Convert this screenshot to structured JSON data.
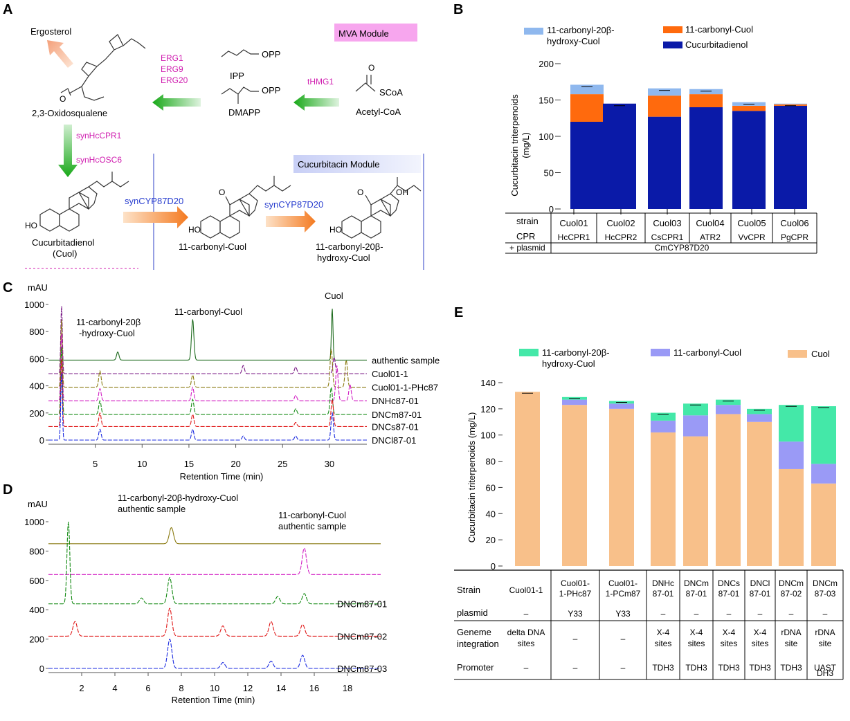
{
  "panels": {
    "a": "A",
    "b": "B",
    "c": "C",
    "d": "D",
    "e": "E"
  },
  "panelA": {
    "ergosterol": "Ergosterol",
    "mva_module": "MVA Module",
    "erg": [
      "ERG1",
      "ERG9",
      "ERG20"
    ],
    "opp1": "OPP",
    "ipp": "IPP",
    "opp2": "OPP",
    "dmapp": "DMAPP",
    "thmg1": "tHMG1",
    "o_label": "O",
    "scoa": "SCoA",
    "acetyl": "Acetyl-CoA",
    "oxido": "2,3-Oxidosqualene",
    "synhccpr1": "synHcCPR1",
    "synhcosc6": "synHcOSC6",
    "cuc_module": "Cucurbitacin Module",
    "cuol_name1": "Cucurbitadienol",
    "cuol_name2": "(Cuol)",
    "cyp1": "synCYP87D20",
    "cyp2": "synCYP87D20",
    "ho": "HO",
    "ho2": "HO",
    "ho3": "HO",
    "oh": "OH",
    "o1": "O",
    "o2": "O",
    "carbonyl": "11-carbonyl-Cuol",
    "hydroxy1": "11-carbonyl-20β-",
    "hydroxy2": "hydroxy-Cuol"
  },
  "panelB": {
    "legend": [
      {
        "name1": "11-carbonyl-20β-",
        "name2": "hydroxy-Cuol",
        "color": "#8fb8ee"
      },
      {
        "name1": "11-carbonyl-Cuol",
        "name2": "",
        "color": "#ff6a0d"
      },
      {
        "name1": "Cucurbitadienol",
        "name2": "",
        "color": "#0a1aa8"
      }
    ],
    "ylabel1": "Cucurbitacin triterpenoids",
    "ylabel2": "(mg/L)",
    "yticks": [
      "0",
      "50",
      "100",
      "150",
      "200"
    ],
    "row_labels": [
      "strain",
      "CPR",
      "+ plasmid"
    ],
    "strains": [
      "Cuol01",
      "Cuol02",
      "Cuol03",
      "Cuol04",
      "Cuol05",
      "Cuol06"
    ],
    "cpr": [
      "HcCPR1",
      "HcCPR2",
      "CsCPR1",
      "ATR2",
      "VvCPR",
      "PgCPR"
    ],
    "plasmid": "CmCYP87D20"
  },
  "panelC": {
    "yunit": "mAU",
    "yticks": [
      "0",
      "200",
      "400",
      "600",
      "800",
      "1000"
    ],
    "xticks": [
      "5",
      "10",
      "15",
      "20",
      "25",
      "30"
    ],
    "xlabel": "Retention Time (min)",
    "peak_labels": [
      "11-carbonyl-20β",
      "-hydroxy-Cuol",
      "11-carbonyl-Cuol",
      "Cuol"
    ],
    "traces": [
      {
        "name": "authentic sample",
        "color": "#1e6b1e"
      },
      {
        "name": "Cuol01-1",
        "color": "#7a1a86"
      },
      {
        "name": "Cuol01-1-PHc87",
        "color": "#8a7a10"
      },
      {
        "name": "DNHc87-01",
        "color": "#d21fc4"
      },
      {
        "name": "DNCm87-01",
        "color": "#138a13"
      },
      {
        "name": "DNCs87-01",
        "color": "#e01818"
      },
      {
        "name": "DNCl87-01",
        "color": "#1a2ae0"
      }
    ]
  },
  "panelD": {
    "yunit": "mAU",
    "yticks": [
      "0",
      "200",
      "400",
      "600",
      "800",
      "1000"
    ],
    "xticks": [
      "2",
      "4",
      "6",
      "8",
      "10",
      "12",
      "14",
      "16",
      "18"
    ],
    "xlabel": "Retention Time (min)",
    "label1a": "11-carbonyl-20β-hydroxy-Cuol",
    "label1b": "authentic sample",
    "label2a": "11-carbonyl-Cuol",
    "label2b": "authentic sample",
    "traces": [
      {
        "name": "",
        "color": "#8a7a10"
      },
      {
        "name": "",
        "color": "#d21fc4"
      },
      {
        "name": "DNCm87-01",
        "color": "#138a13"
      },
      {
        "name": "DNCm87-02",
        "color": "#e01818"
      },
      {
        "name": "DNCm87-03",
        "color": "#1a2ae0"
      }
    ]
  },
  "panelE": {
    "legend": [
      {
        "name1": "11-carbonyl-20β-",
        "name2": "hydroxy-Cuol",
        "color": "#44e8a8"
      },
      {
        "name1": "11-carbonyl-Cuol",
        "name2": "",
        "color": "#9a9af6"
      },
      {
        "name1": "Cuol",
        "name2": "",
        "color": "#f8c08a"
      }
    ],
    "ylabel": "Cucurbitacin triterpenoids (mg/L)",
    "yticks": [
      "0",
      "20",
      "40",
      "60",
      "80",
      "100",
      "120",
      "140"
    ],
    "row_labels": {
      "strain": "Strain",
      "plasmid": "plasmid",
      "gen1": "Geneme",
      "gen2": "integration",
      "promoter": "Promoter"
    },
    "columns": [
      {
        "s1": "Cuol01-1",
        "s2": "",
        "plasmid": "–",
        "g1": "delta DNA",
        "g2": "sites",
        "p1": "–",
        "p2": ""
      },
      {
        "s1": "Cuol01-",
        "s2": "1-PHc87",
        "plasmid": "Y33",
        "g1": "–",
        "g2": "",
        "p1": "–",
        "p2": ""
      },
      {
        "s1": "Cuol01-",
        "s2": "1-PCm87",
        "plasmid": "Y33",
        "g1": "–",
        "g2": "",
        "p1": "–",
        "p2": ""
      },
      {
        "s1": "DNHc",
        "s2": "87-01",
        "plasmid": "–",
        "g1": "X-4",
        "g2": "sites",
        "p1": "TDH3",
        "p2": ""
      },
      {
        "s1": "DNCm",
        "s2": "87-01",
        "plasmid": "–",
        "g1": "X-4",
        "g2": "sites",
        "p1": "TDH3",
        "p2": ""
      },
      {
        "s1": "DNCs",
        "s2": "87-01",
        "plasmid": "–",
        "g1": "X-4",
        "g2": "sites",
        "p1": "TDH3",
        "p2": ""
      },
      {
        "s1": "DNCl",
        "s2": "87-01",
        "plasmid": "–",
        "g1": "X-4",
        "g2": "sites",
        "p1": "TDH3",
        "p2": ""
      },
      {
        "s1": "DNCm",
        "s2": "87-02",
        "plasmid": "–",
        "g1": "rDNA",
        "g2": "site",
        "p1": "TDH3",
        "p2": ""
      },
      {
        "s1": "DNCm",
        "s2": "87-03",
        "plasmid": "–",
        "g1": "rDNA",
        "g2": "site",
        "p1": "UAST",
        "p2": "DH3"
      }
    ]
  },
  "chart_data": [
    {
      "type": "bar",
      "panel": "B",
      "stacked": true,
      "categories": [
        "Cuol01",
        "Cuol02",
        "Cuol03",
        "Cuol04",
        "Cuol05",
        "Cuol06"
      ],
      "series": [
        {
          "name": "Cucurbitadienol",
          "values": [
            120,
            145,
            127,
            140,
            135,
            142
          ]
        },
        {
          "name": "11-carbonyl-Cuol",
          "values": [
            38,
            0,
            29,
            18,
            7,
            2
          ]
        },
        {
          "name": "11-carbonyl-20β-hydroxy-Cuol",
          "values": [
            13,
            0,
            10,
            7,
            5,
            1
          ]
        }
      ],
      "ylim": [
        0,
        200
      ],
      "ylabel": "Cucurbitacin triterpenoids (mg/L)"
    },
    {
      "type": "bar",
      "panel": "E",
      "stacked": true,
      "categories": [
        "Cuol01-1",
        "Cuol01-1-PHc87",
        "Cuol01-1-PCm87",
        "DNHc87-01",
        "DNCm87-01",
        "DNCs87-01",
        "DNCl87-01",
        "DNCm87-02",
        "DNCm87-03"
      ],
      "series": [
        {
          "name": "Cuol",
          "values": [
            133,
            123,
            120,
            102,
            99,
            116,
            110,
            74,
            63
          ]
        },
        {
          "name": "11-carbonyl-Cuol",
          "values": [
            0,
            4,
            4,
            9,
            16,
            7,
            6,
            21,
            15
          ]
        },
        {
          "name": "11-carbonyl-20β-hydroxy-Cuol",
          "values": [
            0,
            2,
            2,
            6,
            9,
            4,
            4,
            28,
            44
          ]
        }
      ],
      "ylim": [
        0,
        140
      ],
      "ylabel": "Cucurbitacin triterpenoids (mg/L)"
    },
    {
      "type": "line",
      "panel": "C",
      "x_range": [
        0,
        35
      ],
      "y_range": [
        0,
        1000
      ],
      "xlabel": "Retention Time (min)",
      "ylabel": "mAU",
      "series": [
        {
          "name": "authentic sample",
          "baseline": 590,
          "peaks": [
            [
              7.4,
              60
            ],
            [
              15.4,
              300
            ],
            [
              30.3,
              380
            ]
          ]
        },
        {
          "name": "Cuol01-1",
          "baseline": 490,
          "peaks": [
            [
              1.4,
              500
            ],
            [
              20.8,
              60
            ],
            [
              26.4,
              50
            ],
            [
              30.5,
              120
            ]
          ]
        },
        {
          "name": "Cuol01-1-PHc87",
          "baseline": 390,
          "peaks": [
            [
              1.4,
              500
            ],
            [
              5.5,
              120
            ],
            [
              15.4,
              90
            ],
            [
              30.2,
              280
            ],
            [
              31.8,
              200
            ]
          ]
        },
        {
          "name": "DNHc87-01",
          "baseline": 290,
          "peaks": [
            [
              1.4,
              500
            ],
            [
              5.5,
              90
            ],
            [
              15.4,
              100
            ],
            [
              26.4,
              40
            ],
            [
              30.8,
              260
            ],
            [
              32.2,
              120
            ]
          ]
        },
        {
          "name": "DNCm87-01",
          "baseline": 190,
          "peaks": [
            [
              1.4,
              500
            ],
            [
              5.5,
              100
            ],
            [
              15.4,
              110
            ],
            [
              26.4,
              40
            ],
            [
              30.2,
              200
            ]
          ]
        },
        {
          "name": "DNCs87-01",
          "baseline": 100,
          "peaks": [
            [
              1.4,
              500
            ],
            [
              5.5,
              100
            ],
            [
              15.4,
              90
            ],
            [
              26.4,
              30
            ],
            [
              30.3,
              200
            ]
          ]
        },
        {
          "name": "DNCl87-01",
          "baseline": 0,
          "peaks": [
            [
              1.4,
              500
            ],
            [
              5.5,
              80
            ],
            [
              15.4,
              80
            ],
            [
              20.8,
              30
            ],
            [
              26.4,
              30
            ],
            [
              30.3,
              200
            ]
          ]
        }
      ]
    },
    {
      "type": "line",
      "panel": "D",
      "x_range": [
        0,
        20
      ],
      "y_range": [
        0,
        1000
      ],
      "xlabel": "Retention Time (min)",
      "ylabel": "mAU",
      "series": [
        {
          "name": "",
          "baseline": 850,
          "peaks": [
            [
              7.4,
              110
            ]
          ]
        },
        {
          "name": "",
          "baseline": 640,
          "peaks": [
            [
              15.4,
              180
            ]
          ]
        },
        {
          "name": "DNCm87-01",
          "baseline": 440,
          "peaks": [
            [
              1.2,
              560
            ],
            [
              5.6,
              40
            ],
            [
              7.3,
              180
            ],
            [
              13.8,
              50
            ],
            [
              15.4,
              70
            ]
          ]
        },
        {
          "name": "DNCm87-02",
          "baseline": 220,
          "peaks": [
            [
              1.6,
              100
            ],
            [
              7.3,
              190
            ],
            [
              10.5,
              70
            ],
            [
              13.4,
              100
            ],
            [
              15.3,
              80
            ]
          ]
        },
        {
          "name": "DNCm87-03",
          "baseline": 0,
          "peaks": [
            [
              7.3,
              200
            ],
            [
              10.5,
              40
            ],
            [
              13.4,
              50
            ],
            [
              15.3,
              90
            ]
          ]
        }
      ]
    }
  ]
}
